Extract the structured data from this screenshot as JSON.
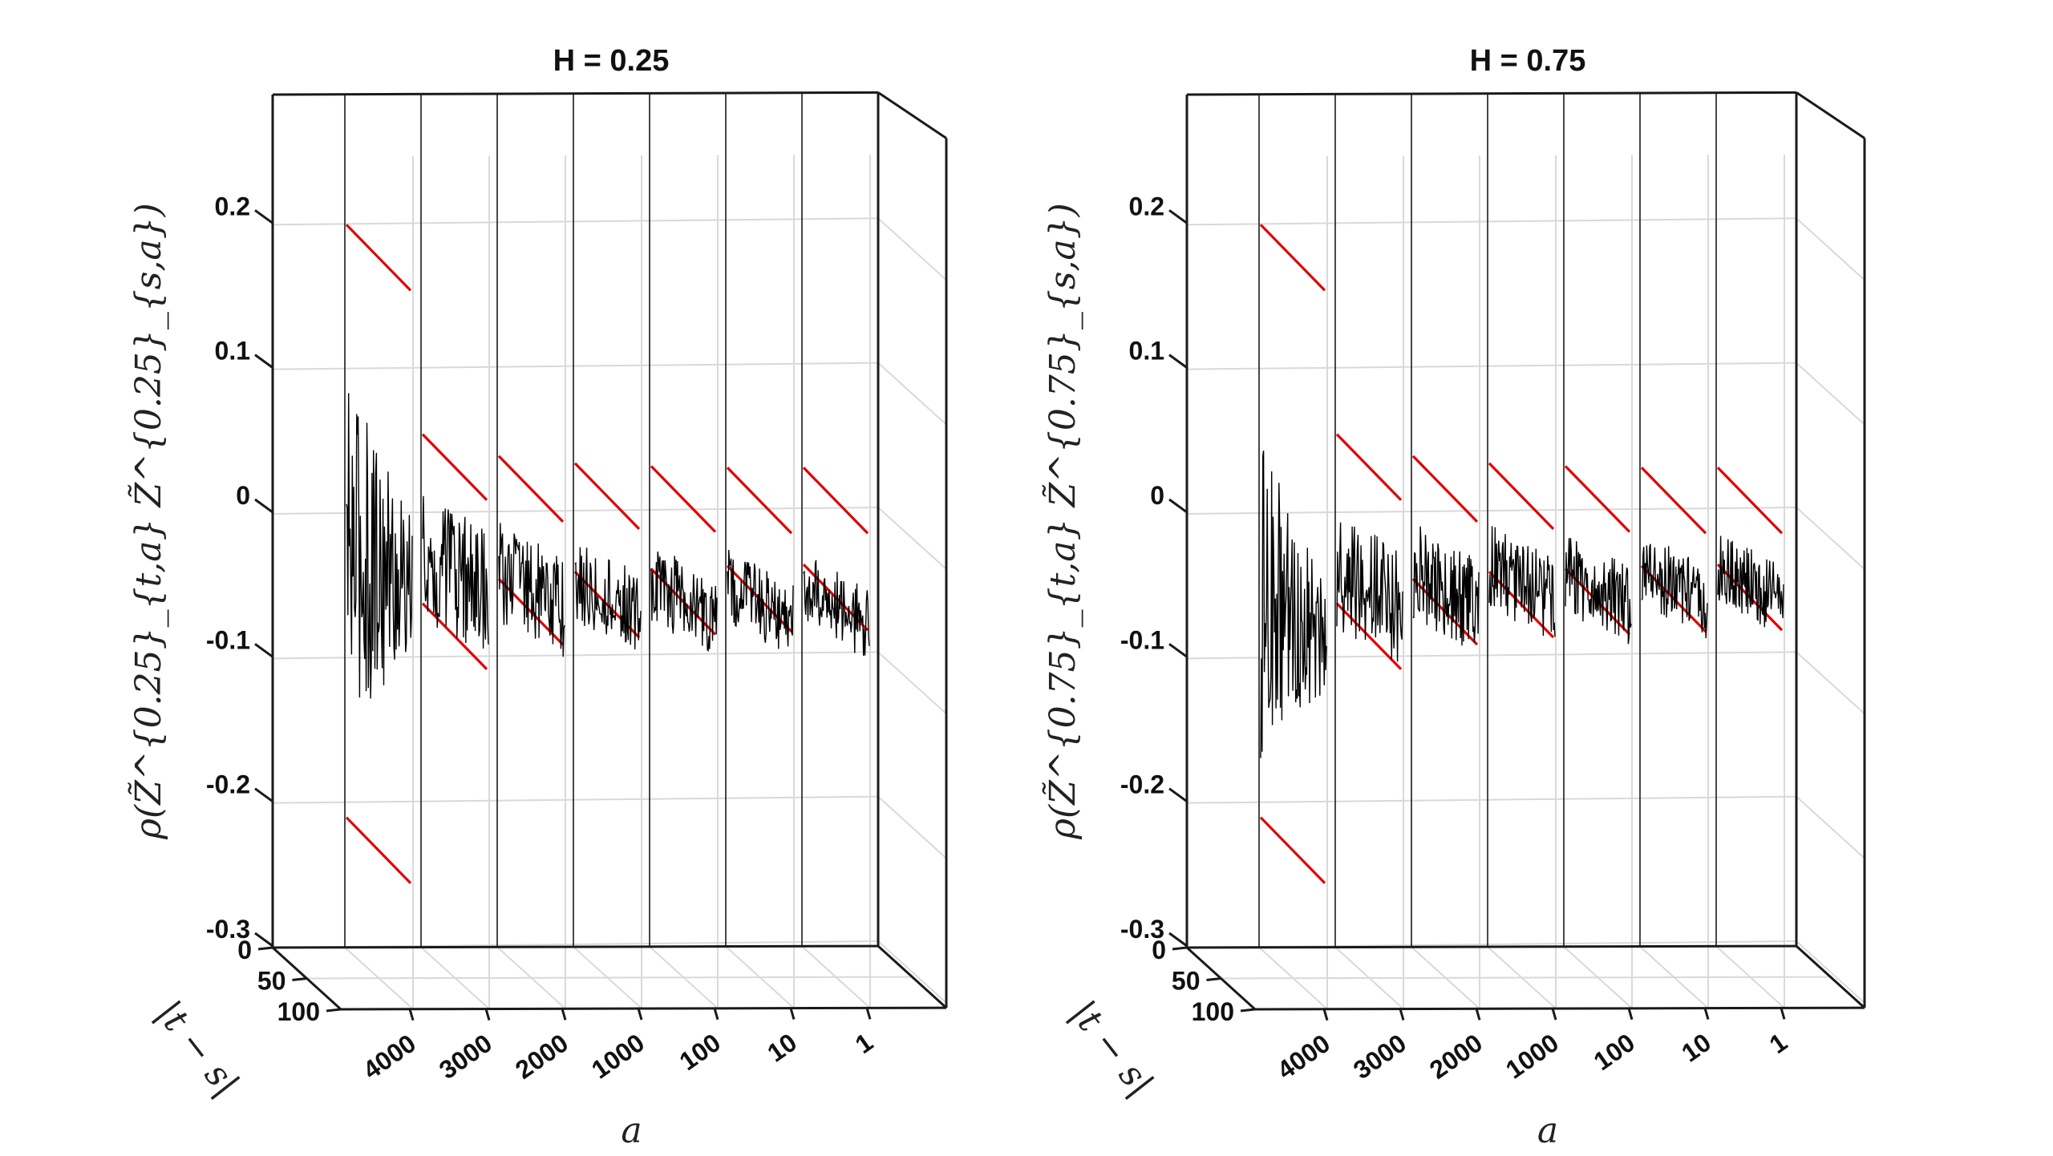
{
  "chart_data": [
    {
      "type": "line",
      "title": "H = 0.25",
      "hurst": 0.25,
      "xlabel": "a",
      "ylabel": "ρ(Z̃^{0.25}_{t,a} Z̃^{0.25}_{s,a})",
      "depth_label": "|t − s|",
      "categories": [
        "4000",
        "3000",
        "2000",
        "1000",
        "100",
        "10",
        "1"
      ],
      "depth_ticks": [
        "0",
        "50",
        "100"
      ],
      "depth_range": [
        0,
        100
      ],
      "yticks": [
        "0.2",
        "0.1",
        "0",
        "-0.1",
        "-0.2",
        "-0.3"
      ],
      "ylim": [
        -0.3,
        0.29
      ],
      "series_amplitude": [
        0.09,
        0.045,
        0.035,
        0.03,
        0.028,
        0.026,
        0.025
      ],
      "series_mean": [
        -0.025,
        -0.03,
        -0.04,
        -0.045,
        -0.048,
        -0.05,
        -0.052
      ],
      "bounds_upper": [
        0.2,
        0.055,
        0.04,
        0.035,
        0.033,
        0.032,
        0.032
      ],
      "bounds_lower": [
        -0.21,
        -0.062,
        -0.045,
        -0.04,
        -0.038,
        -0.036,
        -0.035
      ],
      "bound_color": "#e00000",
      "series_color": "#000000"
    },
    {
      "type": "line",
      "title": "H = 0.75",
      "hurst": 0.75,
      "xlabel": "a",
      "ylabel": "ρ(Z̃^{0.75}_{t,a} Z̃^{0.75}_{s,a})",
      "depth_label": "|t − s|",
      "categories": [
        "4000",
        "3000",
        "2000",
        "1000",
        "100",
        "10",
        "1"
      ],
      "depth_ticks": [
        "0",
        "50",
        "100"
      ],
      "depth_range": [
        0,
        100
      ],
      "yticks": [
        "0.2",
        "0.1",
        "0",
        "-0.1",
        "-0.2",
        "-0.3"
      ],
      "ylim": [
        -0.3,
        0.29
      ],
      "series_amplitude": [
        0.08,
        0.04,
        0.034,
        0.03,
        0.028,
        0.026,
        0.025
      ],
      "series_mean": [
        -0.06,
        -0.04,
        -0.04,
        -0.035,
        -0.04,
        -0.038,
        -0.036
      ],
      "bounds_upper": [
        0.2,
        0.055,
        0.04,
        0.035,
        0.033,
        0.032,
        0.032
      ],
      "bounds_lower": [
        -0.21,
        -0.062,
        -0.045,
        -0.04,
        -0.038,
        -0.036,
        -0.035
      ],
      "bound_color": "#e00000",
      "series_color": "#000000"
    }
  ]
}
